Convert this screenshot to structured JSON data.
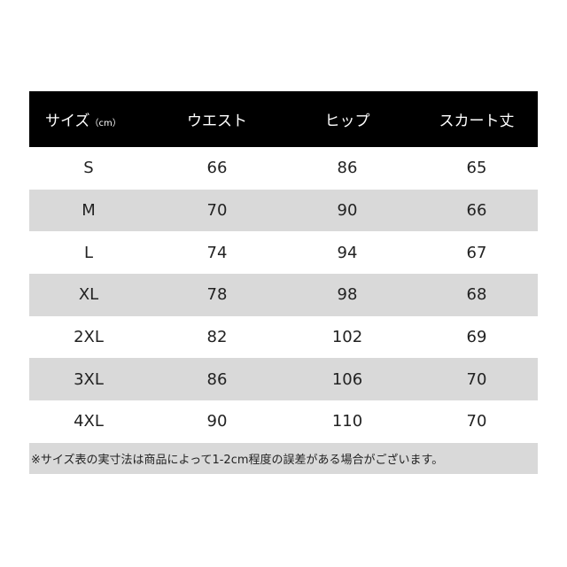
{
  "header": {
    "size": "サイズ",
    "size_unit": "（cm）",
    "waist": "ウエスト",
    "hip": "ヒップ",
    "skirt_length": "スカート丈"
  },
  "rows": [
    {
      "size": "S",
      "waist": "66",
      "hip": "86",
      "length": "65"
    },
    {
      "size": "M",
      "waist": "70",
      "hip": "90",
      "length": "66"
    },
    {
      "size": "L",
      "waist": "74",
      "hip": "94",
      "length": "67"
    },
    {
      "size": "XL",
      "waist": "78",
      "hip": "98",
      "length": "68"
    },
    {
      "size": "2XL",
      "waist": "82",
      "hip": "102",
      "length": "69"
    },
    {
      "size": "3XL",
      "waist": "86",
      "hip": "106",
      "length": "70"
    },
    {
      "size": "4XL",
      "waist": "90",
      "hip": "110",
      "length": "70"
    }
  ],
  "note": "※サイズ表の実寸法は商品によって1-2cm程度の誤差がある場合がございます。",
  "colors": {
    "header_bg": "#000000",
    "stripe": "#d9d9d9"
  }
}
